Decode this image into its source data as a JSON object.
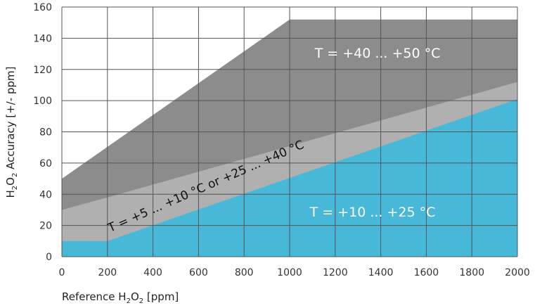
{
  "chart_data": {
    "type": "area",
    "xlabel": "Reference H2O2 [ppm]",
    "ylabel": "H2O2 Accuracy [+/- ppm]",
    "xlim": [
      0,
      2000
    ],
    "ylim": [
      0,
      160
    ],
    "x_ticks": [
      0,
      200,
      400,
      600,
      800,
      1000,
      1200,
      1400,
      1600,
      1800,
      2000
    ],
    "y_ticks": [
      0,
      20,
      40,
      60,
      80,
      100,
      120,
      140,
      160
    ],
    "grid": true,
    "series": [
      {
        "name": "T = +40 ... +50 °C",
        "color": "#8c8c8c",
        "x": [
          0,
          1000,
          2000
        ],
        "y": [
          50,
          152,
          152
        ]
      },
      {
        "name": "T = +5 ... +10 °C or +25 ... +40 °C",
        "color": "#b0b0b0",
        "x": [
          0,
          200,
          2000
        ],
        "y": [
          30,
          38,
          112
        ]
      },
      {
        "name": "T = +10 ... +25 °C",
        "color": "#48b8d9",
        "x": [
          0,
          200,
          2000
        ],
        "y": [
          10,
          10,
          101
        ]
      }
    ]
  }
}
